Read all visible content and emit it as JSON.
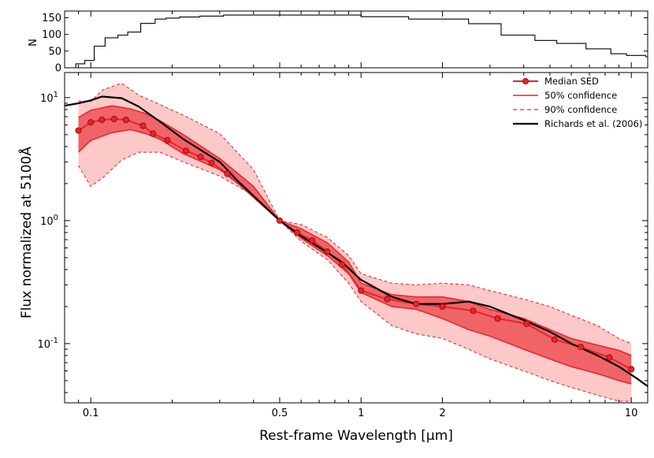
{
  "chart_data": [
    {
      "type": "histogram",
      "panel": "top",
      "ylabel": "N",
      "xscale": "log",
      "xlim": [
        0.08,
        11.5
      ],
      "ylim": [
        0,
        170
      ],
      "yticks": [
        0,
        50,
        100,
        150
      ],
      "ytick_labels": [
        "0",
        "50",
        "100",
        "150"
      ],
      "steps": [
        {
          "x0": 0.08,
          "x1": 0.088,
          "y": 0
        },
        {
          "x0": 0.088,
          "x1": 0.095,
          "y": 12
        },
        {
          "x0": 0.095,
          "x1": 0.103,
          "y": 22
        },
        {
          "x0": 0.103,
          "x1": 0.113,
          "y": 65
        },
        {
          "x0": 0.113,
          "x1": 0.126,
          "y": 90
        },
        {
          "x0": 0.126,
          "x1": 0.137,
          "y": 98
        },
        {
          "x0": 0.137,
          "x1": 0.153,
          "y": 107
        },
        {
          "x0": 0.153,
          "x1": 0.173,
          "y": 133
        },
        {
          "x0": 0.173,
          "x1": 0.19,
          "y": 146
        },
        {
          "x0": 0.19,
          "x1": 0.213,
          "y": 149
        },
        {
          "x0": 0.213,
          "x1": 0.253,
          "y": 152
        },
        {
          "x0": 0.253,
          "x1": 0.31,
          "y": 155
        },
        {
          "x0": 0.31,
          "x1": 1.0,
          "y": 158
        },
        {
          "x0": 1.0,
          "x1": 1.5,
          "y": 153
        },
        {
          "x0": 1.5,
          "x1": 2.5,
          "y": 146
        },
        {
          "x0": 2.5,
          "x1": 3.3,
          "y": 132
        },
        {
          "x0": 3.3,
          "x1": 4.4,
          "y": 98
        },
        {
          "x0": 4.4,
          "x1": 5.3,
          "y": 82
        },
        {
          "x0": 5.3,
          "x1": 6.8,
          "y": 73
        },
        {
          "x0": 6.8,
          "x1": 8.4,
          "y": 57
        },
        {
          "x0": 8.4,
          "x1": 9.6,
          "y": 42
        },
        {
          "x0": 9.6,
          "x1": 11.3,
          "y": 37
        },
        {
          "x0": 11.3,
          "x1": 12.0,
          "y": 33
        }
      ]
    },
    {
      "type": "line",
      "panel": "main",
      "xlabel": "Rest-frame Wavelength  [μm]",
      "ylabel": "Flux normalized at 5100Å",
      "xscale": "log",
      "yscale": "log",
      "xlim": [
        0.08,
        11.5
      ],
      "ylim": [
        0.033,
        16
      ],
      "xticks": [
        0.1,
        0.5,
        1,
        2,
        10
      ],
      "xtick_labels": [
        "0.1",
        "0.5",
        "1",
        "2",
        "10"
      ],
      "yticks": [
        {
          "value": 10,
          "base": "10",
          "exp": "1"
        },
        {
          "value": 1,
          "base": "10",
          "exp": "0"
        },
        {
          "value": 0.1,
          "base": "10",
          "exp": "-1"
        }
      ],
      "legend_position": "top-right",
      "colors": {
        "median": "#e8232a",
        "band50": "#f06468",
        "band90": "#fcc8c8",
        "richards": "#000000",
        "marker_edge": "#8b0000"
      },
      "legend": [
        {
          "key": "median",
          "label": "Median SED",
          "style": "line-marker"
        },
        {
          "key": "c50",
          "label": "50% confidence",
          "style": "solid"
        },
        {
          "key": "c90",
          "label": "90% confidence",
          "style": "dashed"
        },
        {
          "key": "richards",
          "label": "Richards et al. (2006)",
          "style": "black"
        }
      ],
      "series": [
        {
          "name": "Median SED",
          "x": [
            0.09,
            0.1,
            0.11,
            0.122,
            0.135,
            0.156,
            0.17,
            0.192,
            0.225,
            0.255,
            0.28,
            0.32,
            0.5,
            0.58,
            0.66,
            0.75,
            0.85,
            1.0,
            1.25,
            1.6,
            2.0,
            2.6,
            3.2,
            4.1,
            5.2,
            6.5,
            8.3,
            10.0
          ],
          "y": [
            5.4,
            6.3,
            6.6,
            6.7,
            6.6,
            5.9,
            5.1,
            4.5,
            3.7,
            3.3,
            2.95,
            2.4,
            1.0,
            0.8,
            0.69,
            0.56,
            0.44,
            0.27,
            0.23,
            0.21,
            0.2,
            0.185,
            0.16,
            0.145,
            0.108,
            0.094,
            0.077,
            0.062
          ]
        },
        {
          "name": "Richards et al. (2006)",
          "x": [
            0.08,
            0.09,
            0.1,
            0.11,
            0.13,
            0.15,
            0.18,
            0.22,
            0.3,
            0.35,
            0.5,
            0.6,
            0.75,
            0.85,
            1.0,
            1.3,
            1.6,
            2.0,
            2.5,
            3.0,
            4.0,
            5.0,
            6.0,
            7.5,
            9.0,
            10.5,
            11.5
          ],
          "y": [
            8.6,
            9.0,
            9.5,
            10.2,
            9.9,
            8.5,
            6.4,
            4.6,
            3.0,
            2.1,
            1.0,
            0.75,
            0.55,
            0.46,
            0.33,
            0.24,
            0.21,
            0.21,
            0.22,
            0.2,
            0.155,
            0.125,
            0.1,
            0.08,
            0.065,
            0.052,
            0.045
          ]
        }
      ],
      "bands": [
        {
          "name": "90% confidence",
          "x": [
            0.09,
            0.1,
            0.11,
            0.13,
            0.15,
            0.18,
            0.22,
            0.3,
            0.4,
            0.5,
            0.6,
            0.75,
            0.9,
            1.0,
            1.3,
            1.6,
            2.0,
            2.5,
            3.0,
            4.0,
            5.0,
            6.0,
            7.5,
            9.0,
            10.0
          ],
          "lo": [
            2.8,
            1.9,
            2.2,
            3.1,
            3.6,
            3.6,
            3.0,
            2.3,
            1.6,
            1.0,
            0.68,
            0.48,
            0.31,
            0.22,
            0.14,
            0.12,
            0.11,
            0.09,
            0.075,
            0.06,
            0.05,
            0.044,
            0.038,
            0.034,
            0.034
          ],
          "hi": [
            9.4,
            9.3,
            11.5,
            13.1,
            10.5,
            8.8,
            7.2,
            5.1,
            2.6,
            1.0,
            0.93,
            0.73,
            0.52,
            0.37,
            0.31,
            0.3,
            0.31,
            0.3,
            0.27,
            0.23,
            0.2,
            0.17,
            0.14,
            0.11,
            0.1
          ]
        },
        {
          "name": "50% confidence",
          "x": [
            0.09,
            0.1,
            0.12,
            0.14,
            0.16,
            0.18,
            0.22,
            0.3,
            0.4,
            0.5,
            0.6,
            0.75,
            0.9,
            1.0,
            1.3,
            1.6,
            2.0,
            2.5,
            3.0,
            4.0,
            5.0,
            6.0,
            7.5,
            9.0,
            10.0
          ],
          "lo": [
            3.6,
            4.5,
            5.2,
            5.5,
            5.1,
            4.6,
            3.5,
            2.6,
            1.6,
            1.0,
            0.72,
            0.52,
            0.37,
            0.26,
            0.2,
            0.19,
            0.16,
            0.13,
            0.115,
            0.09,
            0.075,
            0.065,
            0.057,
            0.05,
            0.047
          ],
          "hi": [
            6.9,
            7.9,
            8.6,
            8.1,
            7.4,
            6.5,
            5.0,
            3.2,
            1.9,
            1.0,
            0.86,
            0.66,
            0.46,
            0.31,
            0.25,
            0.24,
            0.24,
            0.22,
            0.19,
            0.16,
            0.13,
            0.11,
            0.097,
            0.088,
            0.08
          ]
        }
      ]
    }
  ]
}
